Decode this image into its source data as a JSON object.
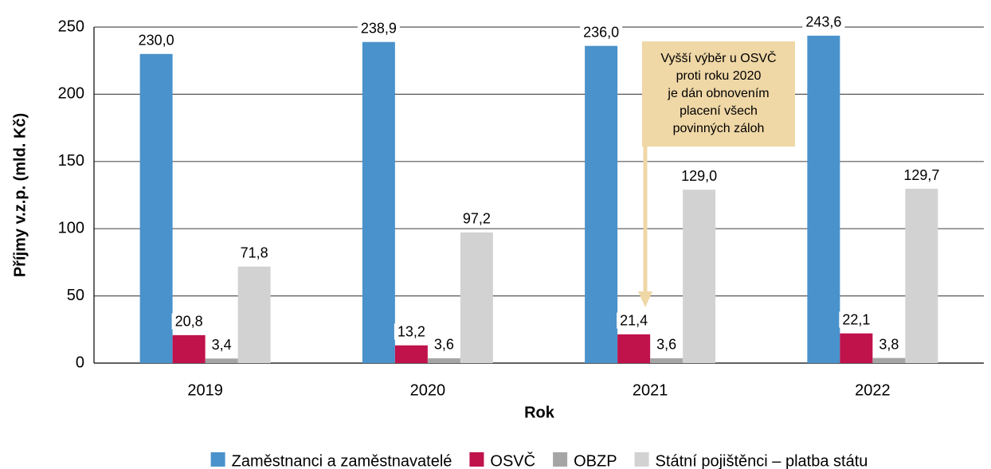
{
  "chart_data": {
    "type": "bar",
    "y_label": "Příjmy v.z.p. (mld. Kč)",
    "x_label": "Rok",
    "categories": [
      "2019",
      "2020",
      "2021",
      "2022"
    ],
    "series": [
      {
        "name": "Zaměstnanci a zaměstnavatelé",
        "color": "#4a92cb",
        "values": [
          230.0,
          238.9,
          236.0,
          243.6
        ],
        "value_labels": [
          "230,0",
          "238,9",
          "236,0",
          "243,6"
        ]
      },
      {
        "name": "OSVČ",
        "color": "#c0124b",
        "values": [
          20.8,
          13.2,
          21.4,
          22.1
        ],
        "value_labels": [
          "20,8",
          "13,2",
          "21,4",
          "22,1"
        ]
      },
      {
        "name": "OBZP",
        "color": "#a5a5a5",
        "values": [
          3.4,
          3.6,
          3.6,
          3.8
        ],
        "value_labels": [
          "3,4",
          "3,6",
          "3,6",
          "3,8"
        ]
      },
      {
        "name": "Státní pojištěnci – platba státu",
        "color": "#d2d2d2",
        "values": [
          71.8,
          97.2,
          129.0,
          129.7
        ],
        "value_labels": [
          "71,8",
          "97,2",
          "129,0",
          "129,7"
        ]
      }
    ],
    "ylim": [
      0,
      250
    ],
    "yticks": [
      0,
      50,
      100,
      150,
      200,
      250
    ],
    "grid": true,
    "annotation": {
      "lines": [
        "Vyšší výběr u OSVČ",
        "proti roku 2020",
        "je dán obnovením",
        "placení všech",
        "povinných záloh"
      ],
      "color": "#efd7a6"
    }
  }
}
